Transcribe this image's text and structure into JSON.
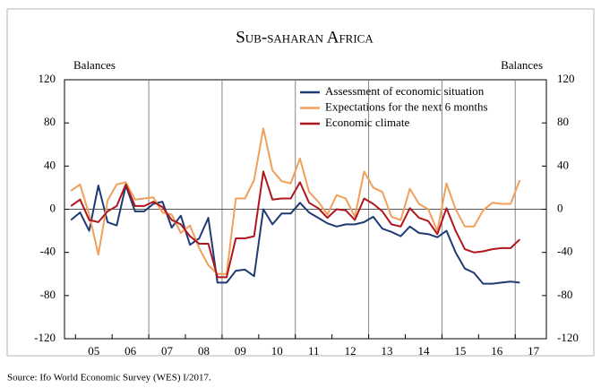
{
  "chart_data": {
    "type": "line",
    "title": "Sub-saharan Africa",
    "ylabel": "Balances",
    "y2label": "Balances",
    "source": "Source: Ifo World Economic Survey (WES) I/2017.",
    "x_start": 2004.875,
    "x_step": 0.25,
    "xlim": [
      2004.7,
      2017.85
    ],
    "xticks": [
      {
        "value": 2005.5,
        "label": "05"
      },
      {
        "value": 2006.5,
        "label": "06"
      },
      {
        "value": 2007.5,
        "label": "07"
      },
      {
        "value": 2008.5,
        "label": "08"
      },
      {
        "value": 2009.5,
        "label": "09"
      },
      {
        "value": 2010.5,
        "label": "10"
      },
      {
        "value": 2011.5,
        "label": "11"
      },
      {
        "value": 2012.5,
        "label": "12"
      },
      {
        "value": 2013.5,
        "label": "13"
      },
      {
        "value": 2014.5,
        "label": "14"
      },
      {
        "value": 2015.5,
        "label": "15"
      },
      {
        "value": 2016.5,
        "label": "16"
      },
      {
        "value": 2017.5,
        "label": "17"
      }
    ],
    "vlines": [
      2007,
      2009,
      2011,
      2013,
      2015,
      2017
    ],
    "ylim": [
      -120,
      120
    ],
    "yticks": [
      120,
      80,
      40,
      0,
      -40,
      -80,
      -120
    ],
    "y2lim": [
      -120,
      120
    ],
    "y2ticks": [
      120,
      80,
      40,
      0,
      -40,
      -80,
      -120
    ],
    "zero_line": true,
    "legend": "upper right",
    "series": [
      {
        "name": "Assessment of economic situation",
        "color": "#1f3b73",
        "values": [
          -10,
          -3,
          -20,
          22,
          -12,
          -15,
          22,
          -2,
          -2,
          5,
          7,
          -17,
          -6,
          -33,
          -27,
          -8,
          -68,
          -68,
          -57,
          -56,
          -62,
          0,
          -14,
          -4,
          -4,
          6,
          -3,
          -8,
          -13,
          -16,
          -14,
          -14,
          -12,
          -7,
          -18,
          -21,
          -25,
          -16,
          -22,
          -23,
          -26,
          -20,
          -40,
          -55,
          -59,
          -69,
          -69,
          -68,
          -67,
          -68
        ]
      },
      {
        "name": "Expectations for the next 6 months",
        "color": "#f0a05a",
        "values": [
          17,
          23,
          -5,
          -42,
          8,
          23,
          25,
          9,
          10,
          11,
          -3,
          -5,
          -22,
          -15,
          -36,
          -52,
          -60,
          -60,
          10,
          10,
          27,
          75,
          36,
          26,
          24,
          47,
          16,
          7,
          -5,
          13,
          10,
          -7,
          35,
          20,
          16,
          -7,
          -10,
          19,
          5,
          0,
          -20,
          24,
          0,
          -16,
          -16,
          -1,
          6,
          5,
          5,
          27
        ]
      },
      {
        "name": "Economic climate",
        "color": "#b0161e",
        "values": [
          3,
          9,
          -10,
          -12,
          -2,
          3,
          23,
          3,
          3,
          7,
          2,
          -10,
          -14,
          -25,
          -32,
          -32,
          -63,
          -63,
          -27,
          -27,
          -25,
          35,
          9,
          10,
          10,
          25,
          6,
          1,
          -8,
          0,
          -1,
          -10,
          10,
          5,
          -2,
          -14,
          -16,
          1,
          -8,
          -11,
          -23,
          1,
          -20,
          -37,
          -40,
          -39,
          -37,
          -36,
          -36,
          -28
        ]
      }
    ]
  }
}
